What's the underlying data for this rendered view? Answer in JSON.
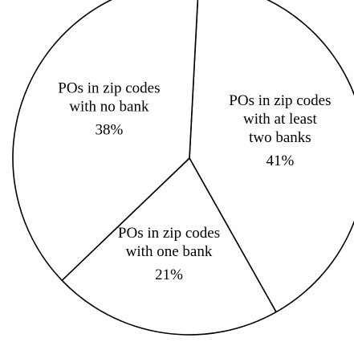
{
  "chart_data": {
    "type": "pie",
    "title": "",
    "legend": "none",
    "slices": [
      {
        "label_lines": [
          "POs in zip codes",
          "with at least",
          "two banks"
        ],
        "value": 41,
        "value_label": "41%"
      },
      {
        "label_lines": [
          "POs in zip codes",
          "with one bank"
        ],
        "value": 21,
        "value_label": "21%"
      },
      {
        "label_lines": [
          "POs in zip codes",
          "with no bank"
        ],
        "value": 38,
        "value_label": "38%"
      }
    ],
    "colors": {
      "fill": "#ffffff",
      "stroke": "#000000"
    }
  }
}
